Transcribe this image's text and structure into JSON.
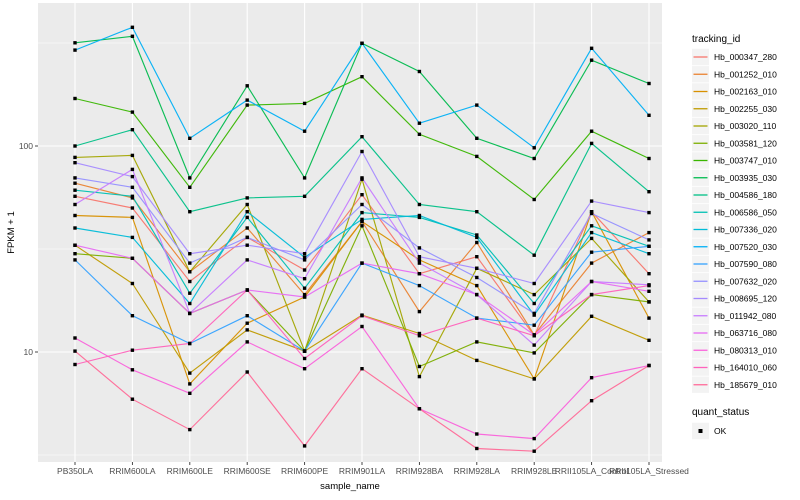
{
  "figure": {
    "background": "#FFFFFF",
    "panel_background": "#EBEBEB",
    "gridline_color": "#FFFFFF",
    "tick_label_color": "#4D4D4D",
    "axis_title_color": "#000000",
    "marker_color": "#000000",
    "legend_key_background": "#F3F3F3"
  },
  "chart_data": {
    "type": "line",
    "title": "",
    "xlabel": "sample_name",
    "ylabel": "FPKM + 1",
    "y_scale": "log10",
    "y_ticks": [
      10,
      100
    ],
    "y_tick_labels": [
      "10",
      "100"
    ],
    "y_minor_ticks": [
      3.162,
      31.62,
      316.2
    ],
    "ylim": [
      2.9,
      470
    ],
    "grid": true,
    "legend_position": "right",
    "legend_title": "tracking_id",
    "marker_legend": {
      "title": "quant_status",
      "items": [
        {
          "label": "OK",
          "marker": "black-square"
        }
      ]
    },
    "x_categories": [
      "PB350LA",
      "RRIM600LA",
      "RRIM600LE",
      "RRIM600SE",
      "RRIM600PE",
      "RRIM901LA",
      "RRIM928BA",
      "RRIM928LA",
      "RRIM928LE",
      "RRII105LA_Control",
      "RRII105LA_Stressed"
    ],
    "series": [
      {
        "name": "Hb_000347_280",
        "color": "#F8766D",
        "values": [
          57,
          50,
          22,
          36,
          25,
          58,
          24,
          29,
          12,
          48,
          24
        ]
      },
      {
        "name": "Hb_001252_010",
        "color": "#EA8331",
        "values": [
          66,
          56,
          24.5,
          40,
          19,
          43,
          15.7,
          34,
          12.1,
          27,
          38
        ]
      },
      {
        "name": "Hb_002163_010",
        "color": "#D89000",
        "values": [
          46,
          45,
          7,
          13.8,
          18.5,
          43,
          28,
          21,
          7.4,
          48,
          14.6
        ]
      },
      {
        "name": "Hb_002255_030",
        "color": "#C09B00",
        "values": [
          33,
          21.5,
          7.9,
          12.8,
          10.1,
          15.1,
          12.3,
          9.1,
          7.4,
          14.9,
          11.4
        ]
      },
      {
        "name": "Hb_003020_110",
        "color": "#A3A500",
        "values": [
          88,
          90,
          24.5,
          52,
          10.1,
          69,
          7.6,
          25.5,
          19,
          35.6,
          17.5
        ]
      },
      {
        "name": "Hb_003581_120",
        "color": "#7CAE00",
        "values": [
          30,
          28.5,
          15.4,
          20,
          10.1,
          41,
          8.5,
          11.2,
          9.9,
          19,
          17.5
        ]
      },
      {
        "name": "Hb_003747_010",
        "color": "#39B600",
        "values": [
          170,
          146,
          63,
          158,
          161,
          217,
          114,
          89,
          55,
          118,
          87
        ]
      },
      {
        "name": "Hb_003935_030",
        "color": "#00BB4E",
        "values": [
          317,
          341,
          70,
          196,
          70,
          315,
          230,
          109,
          87,
          261,
          201
        ]
      },
      {
        "name": "Hb_004586_180",
        "color": "#00C087",
        "values": [
          100,
          120,
          48,
          56,
          57,
          111,
          52,
          48,
          29.5,
          103,
          60
        ]
      },
      {
        "name": "Hb_006586_050",
        "color": "#00C0B4",
        "values": [
          61,
          57,
          19.3,
          45,
          20.4,
          47.5,
          45,
          37,
          17.2,
          41,
          32.6
        ]
      },
      {
        "name": "Hb_007336_020",
        "color": "#00BCD8",
        "values": [
          40,
          36,
          17.2,
          48,
          28.8,
          44,
          46,
          36,
          15.1,
          38,
          30
        ]
      },
      {
        "name": "Hb_007520_030",
        "color": "#00B0F6",
        "values": [
          292,
          377,
          109,
          167,
          118,
          315,
          129,
          158,
          98,
          298,
          141
        ]
      },
      {
        "name": "Hb_007590_080",
        "color": "#35A2FF",
        "values": [
          28,
          15,
          11,
          15,
          10.1,
          27,
          21,
          14.6,
          13.5,
          30.5,
          32.6
        ]
      },
      {
        "name": "Hb_007632_020",
        "color": "#9590FF",
        "values": [
          70,
          63,
          27,
          36,
          28,
          52,
          32,
          23,
          15.4,
          47,
          35
        ]
      },
      {
        "name": "Hb_008695_120",
        "color": "#A58AFF",
        "values": [
          83,
          71,
          30,
          33,
          30,
          94,
          29,
          25.5,
          21.5,
          54,
          47.5
        ]
      },
      {
        "name": "Hb_011942_080",
        "color": "#C77CFF",
        "values": [
          52,
          77,
          15.4,
          28,
          22.7,
          70,
          27,
          19,
          10.8,
          22,
          21.2
        ]
      },
      {
        "name": "Hb_063716_080",
        "color": "#E76BF3",
        "values": [
          33,
          28.5,
          15.4,
          20,
          18.5,
          27,
          24,
          19,
          12.1,
          22,
          19.7
        ]
      },
      {
        "name": "Hb_080313_010",
        "color": "#FA62DB",
        "values": [
          11.7,
          8.2,
          6.3,
          11.2,
          8.3,
          13.3,
          5.3,
          4,
          3.8,
          7.5,
          8.6
        ]
      },
      {
        "name": "Hb_164010_060",
        "color": "#FF62BC",
        "values": [
          8.7,
          10.2,
          11,
          20,
          9.3,
          15,
          12,
          14.6,
          12,
          19,
          21
        ]
      },
      {
        "name": "Hb_185679_010",
        "color": "#FF6A98",
        "values": [
          10.1,
          5.9,
          4.2,
          8,
          3.5,
          8.3,
          5.3,
          3.4,
          3.3,
          5.8,
          8.6
        ]
      }
    ]
  }
}
